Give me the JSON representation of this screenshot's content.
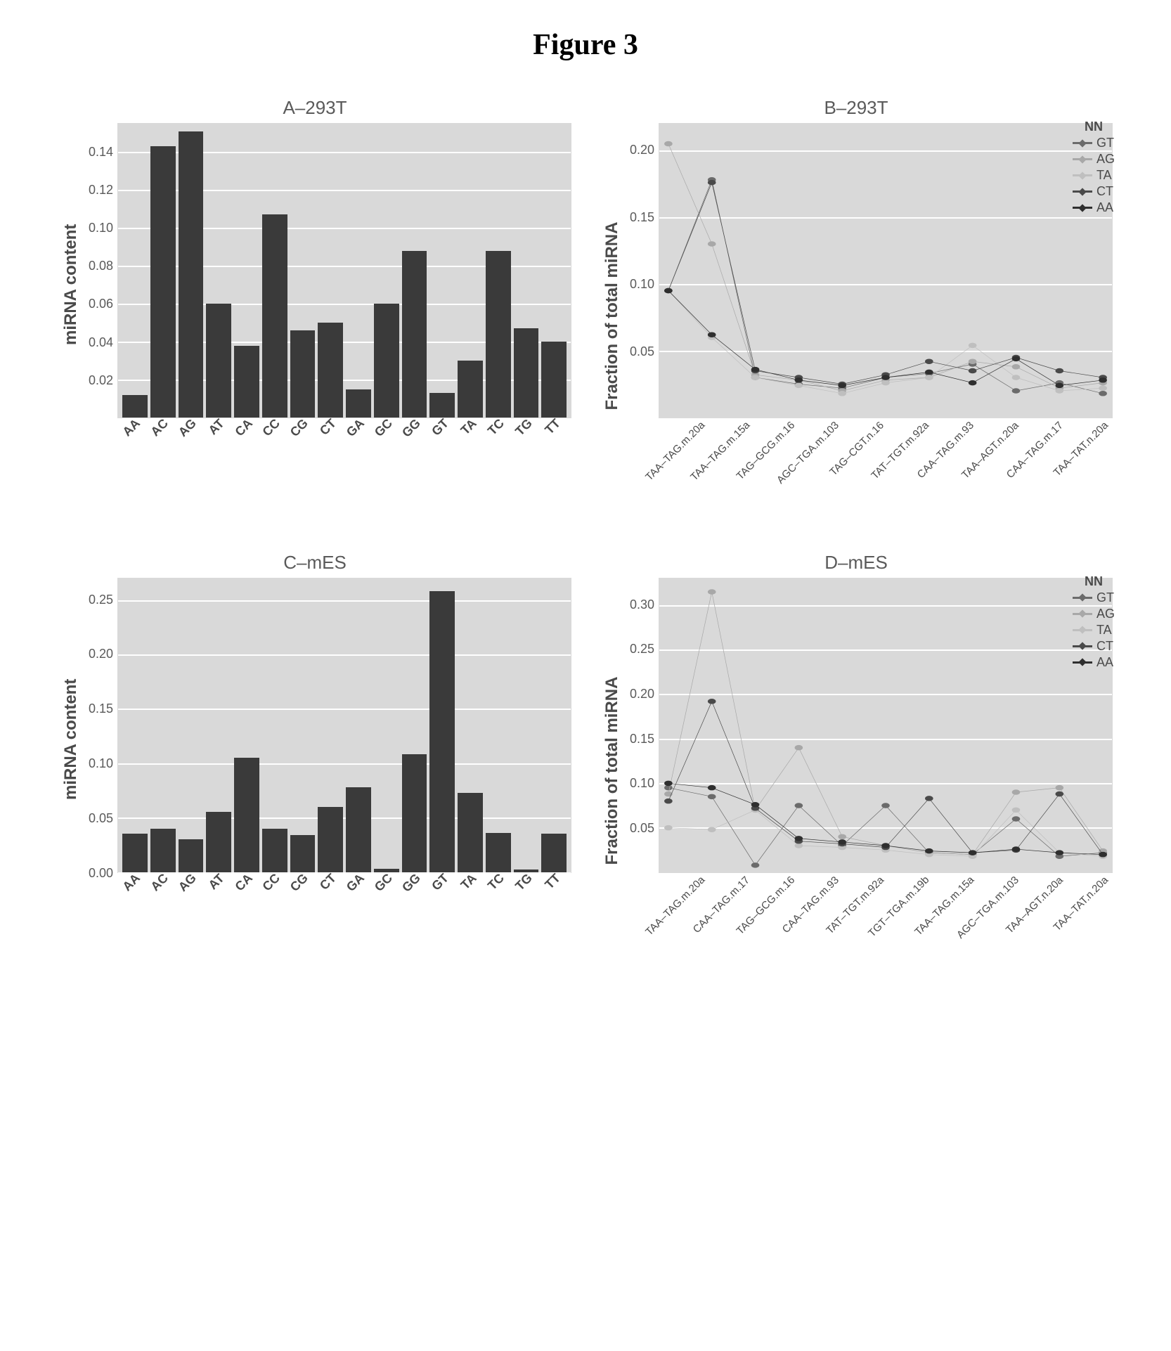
{
  "figure_title": "Figure 3",
  "palette": {
    "bar": "#3a3a3a",
    "plot_bg": "#d9d9d9",
    "grid": "#ffffff",
    "text": "#4a4a4a"
  },
  "line_colors": {
    "GT": "#6b6b6b",
    "AG": "#a8a8a8",
    "TA": "#bfbfbf",
    "CT": "#4a4a4a",
    "AA": "#2f2f2f"
  },
  "legend_title": "NN",
  "legend_order": [
    "GT",
    "AG",
    "TA",
    "CT",
    "AA"
  ],
  "panel_a": {
    "title": "A–293T",
    "type": "bar",
    "ylabel": "miRNA content",
    "ylim": [
      0,
      0.155
    ],
    "yticks": [
      0.02,
      0.04,
      0.06,
      0.08,
      0.1,
      0.12,
      0.14
    ],
    "ytick_labels": [
      "0.02",
      "0.04",
      "0.06",
      "0.08",
      "0.10",
      "0.12",
      "0.14"
    ],
    "categories": [
      "AA",
      "AC",
      "AG",
      "AT",
      "CA",
      "CC",
      "CG",
      "CT",
      "GA",
      "GC",
      "GG",
      "GT",
      "TA",
      "TC",
      "TG",
      "TT"
    ],
    "values": [
      0.012,
      0.143,
      0.151,
      0.06,
      0.038,
      0.107,
      0.046,
      0.05,
      0.015,
      0.06,
      0.088,
      0.013,
      0.03,
      0.088,
      0.047,
      0.04
    ]
  },
  "panel_c": {
    "title": "C–mES",
    "type": "bar",
    "ylabel": "miRNA content",
    "ylim": [
      0,
      0.27
    ],
    "yticks": [
      0.0,
      0.05,
      0.1,
      0.15,
      0.2,
      0.25
    ],
    "ytick_labels": [
      "0.00",
      "0.05",
      "0.10",
      "0.15",
      "0.20",
      "0.25"
    ],
    "categories": [
      "AA",
      "AC",
      "AG",
      "AT",
      "CA",
      "CC",
      "CG",
      "CT",
      "GA",
      "GC",
      "GG",
      "GT",
      "TA",
      "TC",
      "TG",
      "TT"
    ],
    "values": [
      0.035,
      0.04,
      0.03,
      0.055,
      0.105,
      0.04,
      0.034,
      0.06,
      0.078,
      0.003,
      0.108,
      0.258,
      0.073,
      0.036,
      0.002,
      0.035
    ]
  },
  "panel_b": {
    "title": "B–293T",
    "type": "line",
    "ylabel": "Fraction of total miRNA",
    "ylim": [
      0,
      0.22
    ],
    "yticks": [
      0.05,
      0.1,
      0.15,
      0.2
    ],
    "ytick_labels": [
      "0.05",
      "0.10",
      "0.15",
      "0.20"
    ],
    "x_labels": [
      "TAA–TAG.m.20a",
      "TAA–TAG.m.15a",
      "TAG–GCG.m.16",
      "AGC–TGA.m.103",
      "TAG–CGT.n.16",
      "TAT–TGT.m.92a",
      "CAA–TAG.m.93",
      "TAA–AGT.n.20a",
      "CAA–TAG.m.17",
      "TAA–TAT.n.20a"
    ],
    "series": {
      "GT": [
        0.095,
        0.178,
        0.03,
        0.025,
        0.022,
        0.03,
        0.033,
        0.04,
        0.02,
        0.026,
        0.018
      ],
      "AG": [
        0.205,
        0.13,
        0.032,
        0.028,
        0.02,
        0.028,
        0.03,
        0.042,
        0.038,
        0.022,
        0.026
      ],
      "TA": [
        0.095,
        0.06,
        0.03,
        0.024,
        0.018,
        0.026,
        0.03,
        0.054,
        0.03,
        0.02,
        0.022
      ],
      "CT": [
        0.095,
        0.176,
        0.035,
        0.03,
        0.025,
        0.032,
        0.042,
        0.035,
        0.045,
        0.035,
        0.03
      ],
      "AA": [
        0.095,
        0.062,
        0.036,
        0.028,
        0.024,
        0.03,
        0.034,
        0.026,
        0.044,
        0.024,
        0.028
      ]
    }
  },
  "panel_d": {
    "title": "D–mES",
    "type": "line",
    "ylabel": "Fraction of total miRNA",
    "ylim": [
      0,
      0.33
    ],
    "yticks": [
      0.05,
      0.1,
      0.15,
      0.2,
      0.25,
      0.3
    ],
    "ytick_labels": [
      "0.05",
      "0.10",
      "0.15",
      "0.20",
      "0.25",
      "0.30"
    ],
    "x_labels": [
      "TAA–TAG.m.20a",
      "CAA–TAG.m.17",
      "TAG–GCG.m.16",
      "CAA–TAG.m.93",
      "TAT–TGT.m.92a",
      "TGT–TGA.m.19b",
      "TAA–TAG.m.15a",
      "AGC–TGA.m.103",
      "TAA–AGT.n.20a",
      "TAA–TAT.n.20a"
    ],
    "series": {
      "GT": [
        0.095,
        0.085,
        0.008,
        0.075,
        0.03,
        0.075,
        0.022,
        0.02,
        0.06,
        0.018,
        0.022
      ],
      "AG": [
        0.088,
        0.315,
        0.07,
        0.14,
        0.04,
        0.03,
        0.022,
        0.02,
        0.09,
        0.095,
        0.024
      ],
      "TA": [
        0.05,
        0.048,
        0.07,
        0.03,
        0.028,
        0.025,
        0.02,
        0.018,
        0.07,
        0.022,
        0.018
      ],
      "CT": [
        0.08,
        0.192,
        0.072,
        0.035,
        0.032,
        0.028,
        0.083,
        0.022,
        0.025,
        0.088,
        0.02
      ],
      "AA": [
        0.1,
        0.095,
        0.076,
        0.038,
        0.034,
        0.03,
        0.024,
        0.022,
        0.026,
        0.022,
        0.02
      ]
    }
  }
}
